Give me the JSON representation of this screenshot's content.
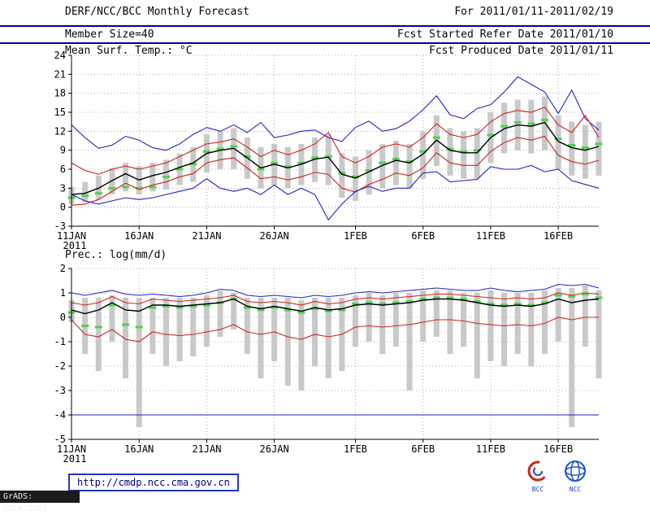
{
  "header": {
    "title": "DERF/NCC/BCC Monthly Forecast",
    "member_size": "Member Size=40",
    "for_range": "For 2011/01/11-2011/02/19",
    "fcst_started": "Fcst Started Refer Date 2011/01/10",
    "fcst_produced": "Fcst Produced Date 2011/01/11"
  },
  "footer": {
    "url": "http://cmdp.ncc.cma.gov.cn",
    "grads_credit": "GrADS: COLA/IGES",
    "logos": [
      {
        "label": "BCC"
      },
      {
        "label": "NCC"
      }
    ]
  },
  "colors": {
    "blue": "#2222cc",
    "red": "#cc2222",
    "black": "#000000",
    "green": "#4ed34e",
    "gray": "#c9c9c9",
    "navy": "#000099",
    "grid": "#9a9a9a"
  },
  "chart_data": [
    {
      "type": "line",
      "name": "temperature-panel",
      "title": "Mean Surf. Temp.: °C",
      "xlabel": "",
      "ylabel": "",
      "ylim": [
        -3,
        24
      ],
      "yticks": [
        24,
        21,
        18,
        15,
        12,
        9,
        6,
        3,
        0,
        -3
      ],
      "x_days": 40,
      "x_year": "2011",
      "xticks": [
        {
          "day": 0,
          "label": "11JAN"
        },
        {
          "day": 5,
          "label": "16JAN"
        },
        {
          "day": 10,
          "label": "21JAN"
        },
        {
          "day": 15,
          "label": "26JAN"
        },
        {
          "day": 21,
          "label": "1FEB"
        },
        {
          "day": 26,
          "label": "6FEB"
        },
        {
          "day": 31,
          "label": "11FEB"
        },
        {
          "day": 36,
          "label": "16FEB"
        }
      ],
      "series": [
        {
          "name": "ensemble-max",
          "color": "blue",
          "values": [
            13.0,
            11.0,
            9.3,
            9.8,
            11.2,
            10.6,
            9.4,
            9.0,
            10.0,
            11.5,
            12.6,
            12.0,
            13.0,
            11.8,
            13.4,
            11.0,
            11.4,
            12.0,
            12.2,
            11.0,
            10.4,
            12.6,
            13.6,
            12.0,
            12.4,
            13.6,
            15.4,
            17.6,
            14.6,
            14.0,
            15.6,
            16.2,
            18.2,
            20.6,
            19.4,
            18.2,
            14.8,
            18.5,
            14.0,
            12.2
          ]
        },
        {
          "name": "mean-plus-sd",
          "color": "red",
          "values": [
            7.0,
            5.8,
            5.2,
            6.0,
            6.5,
            6.0,
            6.5,
            7.0,
            8.0,
            9.0,
            10.0,
            10.3,
            10.8,
            9.5,
            8.0,
            9.0,
            8.3,
            9.0,
            10.0,
            11.8,
            8.0,
            7.0,
            8.0,
            9.5,
            10.0,
            9.5,
            11.0,
            13.2,
            11.5,
            11.0,
            11.5,
            13.5,
            14.8,
            15.3,
            15.0,
            15.8,
            13.0,
            11.8,
            14.5,
            11.0
          ]
        },
        {
          "name": "ensemble-mean",
          "color": "black",
          "values": [
            2.0,
            2.2,
            3.0,
            4.2,
            5.3,
            4.3,
            5.0,
            5.5,
            6.3,
            7.0,
            8.5,
            9.0,
            9.3,
            7.8,
            6.2,
            6.8,
            6.2,
            6.8,
            7.6,
            7.9,
            5.2,
            4.6,
            5.6,
            6.6,
            7.4,
            7.0,
            8.4,
            10.6,
            9.0,
            8.6,
            8.6,
            11.0,
            12.4,
            13.0,
            12.8,
            13.4,
            10.4,
            9.4,
            9.0,
            9.6
          ]
        },
        {
          "name": "mean-minus-sd",
          "color": "red",
          "values": [
            0.3,
            0.5,
            1.2,
            2.5,
            3.8,
            2.8,
            3.5,
            4.0,
            4.8,
            5.3,
            7.0,
            7.5,
            7.8,
            6.2,
            4.5,
            4.8,
            4.3,
            4.8,
            5.5,
            5.2,
            3.0,
            2.4,
            3.6,
            4.4,
            5.4,
            5.0,
            6.2,
            8.6,
            7.0,
            6.6,
            6.6,
            8.8,
            10.2,
            11.0,
            10.6,
            11.2,
            8.2,
            7.2,
            6.8,
            7.4
          ]
        },
        {
          "name": "ensemble-min",
          "color": "blue",
          "values": [
            2.0,
            1.0,
            0.5,
            1.0,
            1.5,
            1.2,
            1.5,
            2.0,
            2.5,
            3.0,
            4.5,
            3.0,
            2.5,
            3.0,
            2.0,
            3.5,
            2.0,
            3.0,
            2.0,
            -2.0,
            0.5,
            2.5,
            3.3,
            2.5,
            3.0,
            3.0,
            5.4,
            5.6,
            4.0,
            4.2,
            4.4,
            6.4,
            6.0,
            6.0,
            6.6,
            5.6,
            6.0,
            4.2,
            3.6,
            3.0
          ]
        }
      ],
      "median_dashes": {
        "name": "ensemble-median",
        "color": "green",
        "values": [
          1.5,
          1.8,
          2.2,
          3.0,
          3.2,
          3.0,
          3.2,
          4.8,
          6.0,
          6.8,
          8.8,
          9.2,
          9.6,
          8.0,
          6.0,
          7.0,
          6.4,
          7.0,
          7.8,
          8.0,
          5.4,
          4.8,
          5.8,
          7.0,
          7.6,
          7.2,
          8.8,
          11.0,
          9.2,
          8.8,
          9.0,
          11.4,
          12.8,
          13.4,
          13.2,
          13.8,
          10.8,
          9.8,
          9.4,
          10.0
        ]
      },
      "bars": {
        "name": "ensemble-spread",
        "color": "gray",
        "low": [
          0.5,
          0.8,
          1.2,
          2.0,
          2.5,
          2.0,
          2.5,
          2.8,
          3.5,
          4.0,
          5.5,
          6.0,
          6.0,
          4.5,
          3.0,
          3.5,
          3.0,
          3.5,
          4.0,
          3.5,
          1.5,
          1.0,
          2.0,
          3.0,
          3.5,
          3.0,
          4.5,
          6.5,
          5.0,
          4.5,
          4.5,
          7.0,
          8.5,
          9.0,
          8.5,
          9.0,
          6.0,
          5.0,
          4.5,
          5.0
        ],
        "high": [
          3.2,
          4.0,
          5.0,
          6.2,
          7.0,
          6.5,
          7.0,
          7.5,
          8.5,
          9.5,
          11.5,
          12.0,
          12.5,
          11.0,
          9.5,
          10.0,
          9.5,
          10.0,
          11.0,
          11.5,
          8.5,
          8.0,
          9.0,
          10.0,
          10.5,
          10.0,
          12.0,
          14.5,
          12.5,
          12.0,
          12.5,
          15.0,
          16.5,
          17.0,
          17.0,
          17.5,
          14.5,
          13.5,
          13.0,
          13.5
        ]
      }
    },
    {
      "type": "line",
      "name": "precipitation-panel",
      "title": "Prec.: log(mm/d)",
      "xlabel": "",
      "ylabel": "",
      "ylim": [
        -5,
        2
      ],
      "yticks": [
        2,
        1,
        0,
        -1,
        -2,
        -3,
        -4,
        -5
      ],
      "x_days": 40,
      "x_year": "2011",
      "xticks": [
        {
          "day": 0,
          "label": "11JAN"
        },
        {
          "day": 5,
          "label": "16JAN"
        },
        {
          "day": 10,
          "label": "21JAN"
        },
        {
          "day": 15,
          "label": "26JAN"
        },
        {
          "day": 21,
          "label": "1FEB"
        },
        {
          "day": 26,
          "label": "6FEB"
        },
        {
          "day": 31,
          "label": "11FEB"
        },
        {
          "day": 36,
          "label": "16FEB"
        }
      ],
      "series": [
        {
          "name": "ensemble-max",
          "color": "blue",
          "values": [
            1.0,
            0.9,
            1.0,
            1.1,
            0.95,
            0.9,
            0.95,
            0.9,
            0.85,
            0.9,
            1.0,
            1.15,
            1.1,
            0.9,
            0.85,
            0.9,
            0.85,
            0.8,
            0.9,
            0.85,
            0.9,
            1.0,
            1.05,
            1.0,
            1.05,
            1.1,
            1.15,
            1.2,
            1.15,
            1.1,
            1.1,
            1.2,
            1.1,
            1.05,
            1.1,
            1.15,
            1.35,
            1.3,
            1.35,
            1.2
          ]
        },
        {
          "name": "mean-plus-sd",
          "color": "red",
          "values": [
            0.6,
            0.5,
            0.6,
            0.85,
            0.6,
            0.55,
            0.75,
            0.7,
            0.65,
            0.7,
            0.75,
            0.8,
            0.9,
            0.65,
            0.6,
            0.65,
            0.6,
            0.5,
            0.65,
            0.55,
            0.6,
            0.75,
            0.8,
            0.75,
            0.8,
            0.85,
            0.9,
            0.95,
            0.95,
            0.9,
            0.85,
            0.8,
            0.75,
            0.8,
            0.75,
            0.8,
            1.0,
            0.9,
            1.0,
            0.95
          ]
        },
        {
          "name": "ensemble-mean",
          "color": "black",
          "values": [
            0.3,
            0.15,
            0.3,
            0.6,
            0.3,
            0.25,
            0.5,
            0.5,
            0.45,
            0.5,
            0.55,
            0.6,
            0.75,
            0.45,
            0.35,
            0.45,
            0.35,
            0.25,
            0.4,
            0.3,
            0.35,
            0.5,
            0.55,
            0.5,
            0.55,
            0.6,
            0.7,
            0.75,
            0.75,
            0.7,
            0.6,
            0.5,
            0.45,
            0.5,
            0.45,
            0.55,
            0.75,
            0.6,
            0.7,
            0.75
          ]
        },
        {
          "name": "mean-minus-sd",
          "color": "red",
          "values": [
            -0.1,
            -0.7,
            -0.8,
            -0.5,
            -0.9,
            -1.0,
            -0.6,
            -0.7,
            -0.75,
            -0.7,
            -0.6,
            -0.5,
            -0.3,
            -0.6,
            -0.7,
            -0.6,
            -0.8,
            -0.9,
            -0.7,
            -0.8,
            -0.7,
            -0.4,
            -0.35,
            -0.4,
            -0.35,
            -0.3,
            -0.2,
            -0.1,
            -0.1,
            -0.15,
            -0.25,
            -0.3,
            -0.35,
            -0.3,
            -0.35,
            -0.25,
            0.0,
            -0.1,
            0.0,
            0.0
          ]
        },
        {
          "name": "ensemble-min",
          "color": "blue",
          "values": [
            -4.0,
            -4.0,
            -4.0,
            -4.0,
            -4.0,
            -4.0,
            -4.0,
            -4.0,
            -4.0,
            -4.0,
            -4.0,
            -4.0,
            -4.0,
            -4.0,
            -4.0,
            -4.0,
            -4.0,
            -4.0,
            -4.0,
            -4.0,
            -4.0,
            -4.0,
            -4.0,
            -4.0,
            -4.0,
            -4.0,
            -4.0,
            -4.0,
            -4.0,
            -4.0,
            -4.0,
            -4.0,
            -4.0,
            -4.0,
            -4.0,
            -4.0,
            -4.0,
            -4.0,
            -4.0,
            -4.0
          ]
        }
      ],
      "median_dashes": {
        "name": "ensemble-median",
        "color": "green",
        "values": [
          0.2,
          -0.35,
          -0.4,
          0.5,
          -0.3,
          -0.4,
          0.4,
          0.45,
          0.4,
          0.45,
          0.5,
          0.6,
          0.75,
          0.4,
          0.3,
          0.4,
          0.3,
          0.2,
          0.35,
          0.25,
          0.3,
          0.55,
          0.6,
          0.55,
          0.6,
          0.65,
          0.75,
          0.8,
          0.8,
          0.75,
          0.65,
          0.55,
          0.5,
          0.55,
          0.5,
          0.6,
          0.9,
          0.85,
          0.95,
          0.8
        ]
      },
      "bars": {
        "name": "ensemble-spread",
        "color": "gray",
        "low": [
          -0.2,
          -1.5,
          -2.2,
          -1.0,
          -2.5,
          -4.5,
          -1.5,
          -2.0,
          -1.8,
          -1.6,
          -1.2,
          -0.8,
          -0.5,
          -1.5,
          -2.5,
          -1.8,
          -2.8,
          -3.0,
          -2.0,
          -2.5,
          -2.2,
          -1.2,
          -1.0,
          -1.5,
          -1.2,
          -3.0,
          -1.0,
          -0.8,
          -1.5,
          -1.2,
          -2.5,
          -1.8,
          -2.0,
          -1.5,
          -2.0,
          -1.5,
          -1.0,
          -4.5,
          -1.2,
          -2.5
        ],
        "high": [
          0.7,
          0.8,
          0.8,
          0.9,
          0.8,
          0.8,
          0.8,
          0.8,
          0.8,
          0.8,
          0.9,
          1.1,
          1.0,
          0.8,
          0.8,
          0.8,
          0.8,
          0.7,
          0.8,
          0.8,
          0.8,
          0.9,
          1.0,
          0.9,
          1.0,
          1.0,
          1.1,
          1.1,
          1.1,
          1.0,
          1.0,
          1.1,
          1.0,
          1.0,
          1.0,
          1.1,
          1.2,
          1.2,
          1.3,
          1.1
        ]
      }
    }
  ]
}
